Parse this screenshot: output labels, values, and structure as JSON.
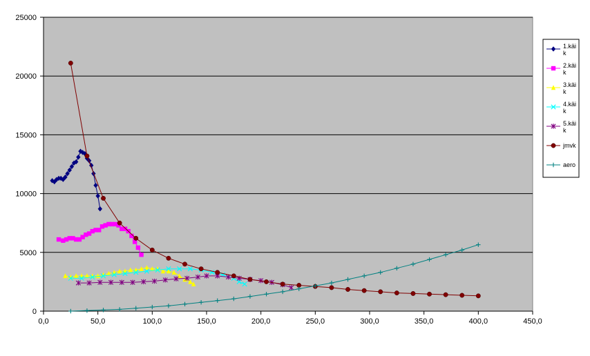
{
  "chart_data": {
    "type": "line",
    "xlim": [
      0,
      450
    ],
    "ylim": [
      0,
      25000
    ],
    "xticks": [
      0,
      50,
      100,
      150,
      200,
      250,
      300,
      350,
      400,
      450
    ],
    "xtick_labels": [
      "0,0",
      "50,0",
      "100,0",
      "150,0",
      "200,0",
      "250,0",
      "300,0",
      "350,0",
      "400,0",
      "450,0"
    ],
    "yticks": [
      0,
      5000,
      10000,
      15000,
      20000,
      25000
    ],
    "ytick_labels": [
      "0",
      "5000",
      "10000",
      "15000",
      "20000",
      "25000"
    ],
    "grid": "horizontal",
    "plot_background": "#c0c0c0",
    "legend_position": "right",
    "series": [
      {
        "name": "1.käik",
        "color": "#000080",
        "marker": "diamond",
        "points": [
          [
            8,
            11100
          ],
          [
            10,
            11000
          ],
          [
            12,
            11200
          ],
          [
            14,
            11300
          ],
          [
            16,
            11300
          ],
          [
            18,
            11200
          ],
          [
            20,
            11400
          ],
          [
            22,
            11700
          ],
          [
            24,
            12000
          ],
          [
            26,
            12300
          ],
          [
            28,
            12600
          ],
          [
            30,
            12700
          ],
          [
            32,
            13100
          ],
          [
            34,
            13600
          ],
          [
            36,
            13500
          ],
          [
            38,
            13400
          ],
          [
            40,
            13000
          ],
          [
            42,
            12800
          ],
          [
            44,
            12400
          ],
          [
            46,
            11700
          ],
          [
            48,
            10700
          ],
          [
            50,
            9800
          ],
          [
            52,
            8700
          ]
        ]
      },
      {
        "name": "2.käik",
        "color": "#ff00ff",
        "marker": "square",
        "points": [
          [
            14,
            6100
          ],
          [
            18,
            6000
          ],
          [
            21,
            6100
          ],
          [
            24,
            6200
          ],
          [
            27,
            6200
          ],
          [
            30,
            6100
          ],
          [
            33,
            6100
          ],
          [
            36,
            6300
          ],
          [
            39,
            6500
          ],
          [
            42,
            6600
          ],
          [
            45,
            6800
          ],
          [
            48,
            6900
          ],
          [
            51,
            6900
          ],
          [
            54,
            7200
          ],
          [
            57,
            7300
          ],
          [
            60,
            7400
          ],
          [
            63,
            7400
          ],
          [
            66,
            7400
          ],
          [
            69,
            7300
          ],
          [
            72,
            7000
          ],
          [
            75,
            7000
          ],
          [
            78,
            6800
          ],
          [
            81,
            6400
          ],
          [
            84,
            5900
          ],
          [
            87,
            5400
          ],
          [
            90,
            4800
          ]
        ]
      },
      {
        "name": "3.käik",
        "color": "#ffff00",
        "marker": "triangle",
        "points": [
          [
            20,
            3000
          ],
          [
            25,
            2900
          ],
          [
            30,
            3000
          ],
          [
            35,
            3000
          ],
          [
            40,
            3000
          ],
          [
            45,
            3000
          ],
          [
            50,
            3000
          ],
          [
            55,
            3100
          ],
          [
            60,
            3200
          ],
          [
            65,
            3300
          ],
          [
            70,
            3400
          ],
          [
            75,
            3400
          ],
          [
            80,
            3500
          ],
          [
            85,
            3500
          ],
          [
            90,
            3600
          ],
          [
            95,
            3700
          ],
          [
            100,
            3600
          ],
          [
            105,
            3600
          ],
          [
            110,
            3400
          ],
          [
            115,
            3400
          ],
          [
            120,
            3300
          ],
          [
            125,
            3000
          ],
          [
            130,
            2700
          ],
          [
            135,
            2500
          ],
          [
            138,
            2300
          ]
        ]
      },
      {
        "name": "4.käik",
        "color": "#00ffff",
        "marker": "x",
        "points": [
          [
            25,
            2800
          ],
          [
            35,
            2800
          ],
          [
            45,
            2900
          ],
          [
            55,
            3000
          ],
          [
            65,
            3100
          ],
          [
            75,
            3200
          ],
          [
            85,
            3300
          ],
          [
            95,
            3400
          ],
          [
            105,
            3500
          ],
          [
            115,
            3600
          ],
          [
            125,
            3600
          ],
          [
            135,
            3600
          ],
          [
            145,
            3500
          ],
          [
            155,
            3300
          ],
          [
            165,
            3100
          ],
          [
            175,
            2800
          ],
          [
            180,
            2500
          ],
          [
            185,
            2300
          ]
        ]
      },
      {
        "name": "5.käik",
        "color": "#800080",
        "marker": "star",
        "points": [
          [
            32,
            2400
          ],
          [
            42,
            2400
          ],
          [
            52,
            2450
          ],
          [
            62,
            2450
          ],
          [
            72,
            2450
          ],
          [
            82,
            2450
          ],
          [
            92,
            2500
          ],
          [
            102,
            2550
          ],
          [
            112,
            2650
          ],
          [
            122,
            2750
          ],
          [
            132,
            2800
          ],
          [
            142,
            2900
          ],
          [
            150,
            3000
          ],
          [
            160,
            3000
          ],
          [
            170,
            2900
          ],
          [
            180,
            2800
          ],
          [
            190,
            2700
          ],
          [
            200,
            2600
          ],
          [
            210,
            2450
          ],
          [
            220,
            2250
          ],
          [
            228,
            2000
          ]
        ]
      },
      {
        "name": "jmvk",
        "color": "#800000",
        "marker": "circle",
        "points": [
          [
            25,
            21100
          ],
          [
            40,
            13200
          ],
          [
            55,
            9600
          ],
          [
            70,
            7500
          ],
          [
            85,
            6200
          ],
          [
            100,
            5200
          ],
          [
            115,
            4500
          ],
          [
            130,
            4000
          ],
          [
            145,
            3600
          ],
          [
            160,
            3300
          ],
          [
            175,
            3000
          ],
          [
            190,
            2700
          ],
          [
            205,
            2500
          ],
          [
            220,
            2300
          ],
          [
            235,
            2200
          ],
          [
            250,
            2100
          ],
          [
            265,
            2000
          ],
          [
            280,
            1850
          ],
          [
            295,
            1750
          ],
          [
            310,
            1650
          ],
          [
            325,
            1550
          ],
          [
            340,
            1500
          ],
          [
            355,
            1450
          ],
          [
            370,
            1400
          ],
          [
            385,
            1350
          ],
          [
            400,
            1300
          ]
        ]
      },
      {
        "name": "aero",
        "color": "#008080",
        "marker": "plus",
        "points": [
          [
            25,
            0
          ],
          [
            40,
            50
          ],
          [
            55,
            100
          ],
          [
            70,
            150
          ],
          [
            85,
            250
          ],
          [
            100,
            350
          ],
          [
            115,
            450
          ],
          [
            130,
            600
          ],
          [
            145,
            750
          ],
          [
            160,
            900
          ],
          [
            175,
            1050
          ],
          [
            190,
            1250
          ],
          [
            205,
            1450
          ],
          [
            220,
            1650
          ],
          [
            235,
            1900
          ],
          [
            250,
            2150
          ],
          [
            265,
            2400
          ],
          [
            280,
            2700
          ],
          [
            295,
            3000
          ],
          [
            310,
            3300
          ],
          [
            325,
            3650
          ],
          [
            340,
            4000
          ],
          [
            355,
            4400
          ],
          [
            370,
            4800
          ],
          [
            385,
            5200
          ],
          [
            400,
            5650
          ]
        ]
      }
    ]
  }
}
